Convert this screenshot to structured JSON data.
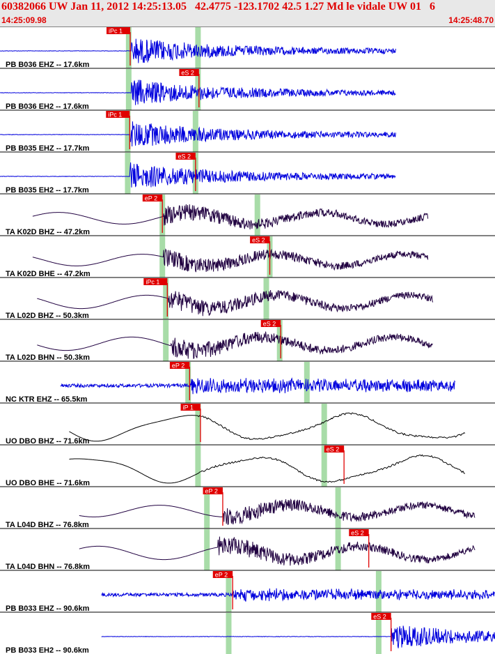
{
  "header": {
    "title": "60382066 UW Jan 11, 2012 14:25:13.05   42.4775 -123.1702 42.5 1.27 Md le vidale UW 01   6",
    "start_time": "14:25:09.98",
    "end_time": "14:25:48.70"
  },
  "colors": {
    "title": "#e00000",
    "pb": "#0000dd",
    "ta": "#200040",
    "nc": "#0000dd",
    "uo": "#000000",
    "pick": "#e00000",
    "window": "#a8dca8"
  },
  "chart_data": {
    "type": "line",
    "time_range": [
      "14:25:09.98",
      "14:25:48.70"
    ],
    "panels": [
      {
        "label": "PB B036 EHZ -- 17.6km",
        "color": "pb",
        "start": 0.0,
        "end": 0.8,
        "onset": 0.265,
        "style": "impulsive",
        "amp": 1.0,
        "wins": [
          0.26,
          0.4
        ],
        "pick": {
          "label": "iPc 1",
          "pos": 0.263
        }
      },
      {
        "label": "PB B036 EH2 -- 17.6km",
        "color": "pb",
        "start": 0.0,
        "end": 0.8,
        "onset": 0.265,
        "style": "impulsive",
        "amp": 1.0,
        "wins": [
          0.26,
          0.4
        ],
        "pick": {
          "label": "eS 2",
          "pos": 0.402
        }
      },
      {
        "label": "PB B035 EHZ -- 17.7km",
        "color": "pb",
        "start": 0.0,
        "end": 0.8,
        "onset": 0.262,
        "style": "impulsive",
        "amp": 1.0,
        "wins": [
          0.258,
          0.395
        ],
        "pick": {
          "label": "iPc 1",
          "pos": 0.262
        }
      },
      {
        "label": "PB B035 EH2 -- 17.7km",
        "color": "pb",
        "start": 0.0,
        "end": 0.8,
        "onset": 0.262,
        "style": "impulsive",
        "amp": 1.0,
        "wins": [
          0.258,
          0.395
        ],
        "pick": {
          "label": "eS 2",
          "pos": 0.395
        }
      },
      {
        "label": "TA K02D BHZ -- 47.2km",
        "color": "ta",
        "start": 0.066,
        "end": 0.865,
        "onset": 0.33,
        "style": "long",
        "amp": 0.7,
        "wins": [
          0.328,
          0.52
        ],
        "pick": {
          "label": "eP 2",
          "pos": 0.328
        }
      },
      {
        "label": "TA K02D BHE -- 47.2km",
        "color": "ta",
        "start": 0.066,
        "end": 0.865,
        "onset": 0.33,
        "style": "long",
        "amp": 0.7,
        "wins": [
          0.328,
          0.545
        ],
        "pick": {
          "label": "eS 2",
          "pos": 0.545
        }
      },
      {
        "label": "TA L02D BHZ -- 50.3km",
        "color": "ta",
        "start": 0.075,
        "end": 0.875,
        "onset": 0.34,
        "style": "long",
        "amp": 0.8,
        "wins": [
          0.335,
          0.538
        ],
        "pick": {
          "label": "iPc 1",
          "pos": 0.338
        }
      },
      {
        "label": "TA L02D BHN -- 50.3km",
        "color": "ta",
        "start": 0.075,
        "end": 0.875,
        "onset": 0.345,
        "style": "long",
        "amp": 0.8,
        "wins": [
          0.335,
          0.565
        ],
        "pick": {
          "label": "eS 2",
          "pos": 0.567
        }
      },
      {
        "label": "NC KTR EHZ -- 65.5km",
        "color": "nc",
        "start": 0.122,
        "end": 0.92,
        "onset": 0.385,
        "style": "noisy",
        "amp": 0.9,
        "wins": [
          0.38,
          0.62
        ],
        "pick": {
          "label": "eP 2",
          "pos": 0.383
        }
      },
      {
        "label": "UO DBO BHZ -- 71.6km",
        "color": "uo",
        "start": 0.14,
        "end": 0.94,
        "onset": 0.4,
        "style": "smooth",
        "amp": 0.85,
        "wins": [
          0.4,
          0.655
        ],
        "pick": {
          "label": "iP 1",
          "pos": 0.405
        }
      },
      {
        "label": "UO DBO BHE -- 71.6km",
        "color": "uo",
        "start": 0.14,
        "end": 0.94,
        "onset": 0.4,
        "style": "smooth",
        "amp": 0.85,
        "wins": [
          0.4,
          0.655
        ],
        "pick": {
          "label": "eS 2",
          "pos": 0.695
        }
      },
      {
        "label": "TA L04D BHZ -- 76.8km",
        "color": "ta",
        "start": 0.16,
        "end": 0.96,
        "onset": 0.45,
        "style": "long",
        "amp": 0.7,
        "wins": [
          0.418,
          0.683
        ],
        "pick": {
          "label": "eP 2",
          "pos": 0.45
        }
      },
      {
        "label": "TA L04D BHN -- 76.8km",
        "color": "ta",
        "start": 0.16,
        "end": 0.96,
        "onset": 0.44,
        "style": "long",
        "amp": 0.8,
        "wins": [
          0.418,
          0.683
        ],
        "pick": {
          "label": "eS 2",
          "pos": 0.745
        }
      },
      {
        "label": "PB B033 EHZ -- 90.6km",
        "color": "pb",
        "start": 0.205,
        "end": 1.0,
        "onset": 0.47,
        "style": "noisy",
        "amp": 0.7,
        "wins": [
          0.462,
          0.765
        ],
        "pick": {
          "label": "eP 2",
          "pos": 0.47
        }
      },
      {
        "label": "PB B033 EH2 -- 90.6km",
        "color": "pb",
        "start": 0.205,
        "end": 1.0,
        "onset": 0.79,
        "style": "impulsive",
        "amp": 0.9,
        "wins": [
          0.462,
          0.765
        ],
        "pick": {
          "label": "eS 2",
          "pos": 0.79
        }
      }
    ]
  }
}
